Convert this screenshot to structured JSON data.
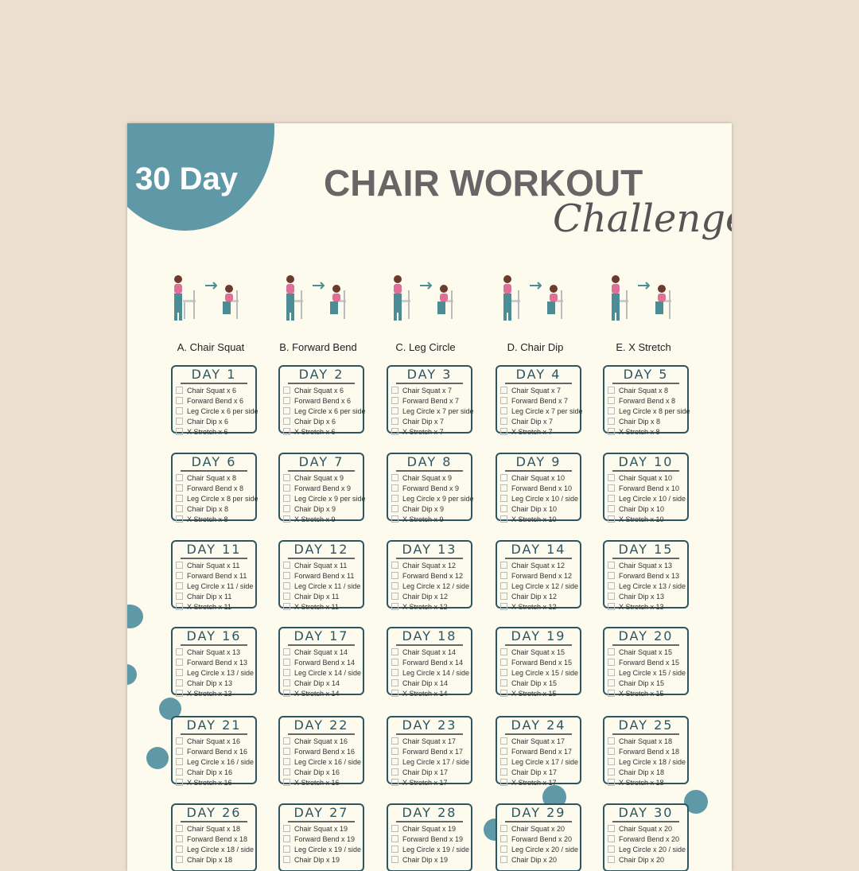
{
  "header": {
    "badge": "30 Day",
    "title": "CHAIR WORKOUT",
    "subtitle": "Challenge"
  },
  "colors": {
    "background": "#ecdfd0",
    "paper": "#fdfaee",
    "accent": "#5f98a6",
    "box_border": "#2e5560",
    "title": "#666666"
  },
  "exercises": [
    {
      "label": "A. Chair Squat"
    },
    {
      "label": "B. Forward Bend"
    },
    {
      "label": "C. Leg Circle"
    },
    {
      "label": "D. Chair Dip"
    },
    {
      "label": "E. X Stretch"
    }
  ],
  "days": [
    {
      "title": "DAY 1",
      "items": [
        "Chair Squat x 6",
        "Forward Bend x 6",
        "Leg Circle x 6 per side",
        "Chair Dip x 6",
        "X Stretch x 6"
      ]
    },
    {
      "title": "DAY 2",
      "items": [
        "Chair Squat x 6",
        "Forward Bend x 6",
        "Leg Circle x 6 per side",
        "Chair Dip x 6",
        "X Stretch x 6"
      ]
    },
    {
      "title": "DAY 3",
      "items": [
        "Chair Squat x 7",
        "Forward Bend x 7",
        "Leg Circle x 7 per side",
        "Chair Dip x 7",
        "X Stretch x 7"
      ]
    },
    {
      "title": "DAY 4",
      "items": [
        "Chair Squat x 7",
        "Forward Bend x 7",
        "Leg Circle x 7 per side",
        "Chair Dip x 7",
        "X Stretch x 7"
      ]
    },
    {
      "title": "DAY 5",
      "items": [
        "Chair Squat x 8",
        "Forward Bend x 8",
        "Leg Circle x 8 per side",
        "Chair Dip x 8",
        "X Stretch x 8"
      ]
    },
    {
      "title": "DAY 6",
      "items": [
        "Chair Squat x 8",
        "Forward Bend x 8",
        "Leg Circle x 8 per side",
        "Chair Dip x 8",
        "X Stretch x 8"
      ]
    },
    {
      "title": "DAY 7",
      "items": [
        "Chair Squat x 9",
        "Forward Bend x 9",
        "Leg Circle x 9 per side",
        "Chair Dip x 9",
        "X Stretch x 9"
      ]
    },
    {
      "title": "DAY 8",
      "items": [
        "Chair Squat x 9",
        "Forward Bend x 9",
        "Leg Circle x 9 per side",
        "Chair Dip x 9",
        "X Stretch x 9"
      ]
    },
    {
      "title": "DAY 9",
      "items": [
        "Chair Squat x 10",
        "Forward Bend x 10",
        "Leg Circle x 10 / side",
        "Chair Dip x 10",
        "X Stretch x 10"
      ]
    },
    {
      "title": "DAY 10",
      "items": [
        "Chair Squat x 10",
        "Forward Bend x 10",
        "Leg Circle x 10 / side",
        "Chair Dip x 10",
        "X Stretch x 10"
      ]
    },
    {
      "title": "DAY 11",
      "items": [
        "Chair Squat x 11",
        "Forward Bend x 11",
        "Leg Circle x 11 / side",
        "Chair Dip x 11",
        "X Stretch x 11"
      ]
    },
    {
      "title": "DAY 12",
      "items": [
        "Chair Squat x 11",
        "Forward Bend x 11",
        "Leg Circle x 11 / side",
        "Chair Dip x 11",
        "X Stretch x 11"
      ]
    },
    {
      "title": "DAY 13",
      "items": [
        "Chair Squat x 12",
        "Forward Bend x 12",
        "Leg Circle x 12 / side",
        "Chair Dip x 12",
        "X Stretch x 12"
      ]
    },
    {
      "title": "DAY 14",
      "items": [
        "Chair Squat x 12",
        "Forward Bend x 12",
        "Leg Circle x 12 / side",
        "Chair Dip x 12",
        "X Stretch x 12"
      ]
    },
    {
      "title": "DAY 15",
      "items": [
        "Chair Squat x 13",
        "Forward Bend x 13",
        "Leg Circle x 13 / side",
        "Chair Dip x 13",
        "X Stretch x 13"
      ]
    },
    {
      "title": "DAY 16",
      "items": [
        "Chair Squat x 13",
        "Forward Bend x 13",
        "Leg Circle x 13 / side",
        "Chair Dip x 13",
        "X Stretch x 13"
      ]
    },
    {
      "title": "DAY 17",
      "items": [
        "Chair Squat x 14",
        "Forward Bend x 14",
        "Leg Circle x 14 / side",
        "Chair Dip x 14",
        "X Stretch x 14"
      ]
    },
    {
      "title": "DAY 18",
      "items": [
        "Chair Squat x 14",
        "Forward Bend x 14",
        "Leg Circle x 14 / side",
        "Chair Dip x 14",
        "X Stretch x 14"
      ]
    },
    {
      "title": "DAY 19",
      "items": [
        "Chair Squat x 15",
        "Forward Bend x 15",
        "Leg Circle x 15 / side",
        "Chair Dip x 15",
        "X Stretch x 15"
      ]
    },
    {
      "title": "DAY 20",
      "items": [
        "Chair Squat x 15",
        "Forward Bend x 15",
        "Leg Circle x 15 / side",
        "Chair Dip x 15",
        "X Stretch x 15"
      ]
    },
    {
      "title": "DAY 21",
      "items": [
        "Chair Squat x 16",
        "Forward Bend x 16",
        "Leg Circle x 16 / side",
        "Chair Dip x 16",
        "X Stretch x 16"
      ]
    },
    {
      "title": "DAY 22",
      "items": [
        "Chair Squat x 16",
        "Forward Bend x 16",
        "Leg Circle x 16 / side",
        "Chair Dip x 16",
        "X Stretch x 16"
      ]
    },
    {
      "title": "DAY 23",
      "items": [
        "Chair Squat x 17",
        "Forward Bend x 17",
        "Leg Circle x 17 / side",
        "Chair Dip x 17",
        "X Stretch x 17"
      ]
    },
    {
      "title": "DAY 24",
      "items": [
        "Chair Squat x 17",
        "Forward Bend x 17",
        "Leg Circle x 17 / side",
        "Chair Dip x 17",
        "X Stretch x 17"
      ]
    },
    {
      "title": "DAY 25",
      "items": [
        "Chair Squat x 18",
        "Forward Bend x 18",
        "Leg Circle x 18 / side",
        "Chair Dip x 18",
        "X Stretch x 18"
      ]
    },
    {
      "title": "DAY 26",
      "items": [
        "Chair Squat x 18",
        "Forward Bend x 18",
        "Leg Circle x 18 / side",
        "Chair Dip x 18"
      ]
    },
    {
      "title": "DAY 27",
      "items": [
        "Chair Squat x 19",
        "Forward Bend x 19",
        "Leg Circle x 19 / side",
        "Chair Dip x 19"
      ]
    },
    {
      "title": "DAY 28",
      "items": [
        "Chair Squat x 19",
        "Forward Bend x 19",
        "Leg Circle x 19 / side",
        "Chair Dip x 19"
      ]
    },
    {
      "title": "DAY 29",
      "items": [
        "Chair Squat x 20",
        "Forward Bend x 20",
        "Leg Circle x 20 / side",
        "Chair Dip x 20"
      ]
    },
    {
      "title": "DAY 30",
      "items": [
        "Chair Squat x 20",
        "Forward Bend x 20",
        "Leg Circle x 20 / side",
        "Chair Dip x 20"
      ]
    }
  ]
}
